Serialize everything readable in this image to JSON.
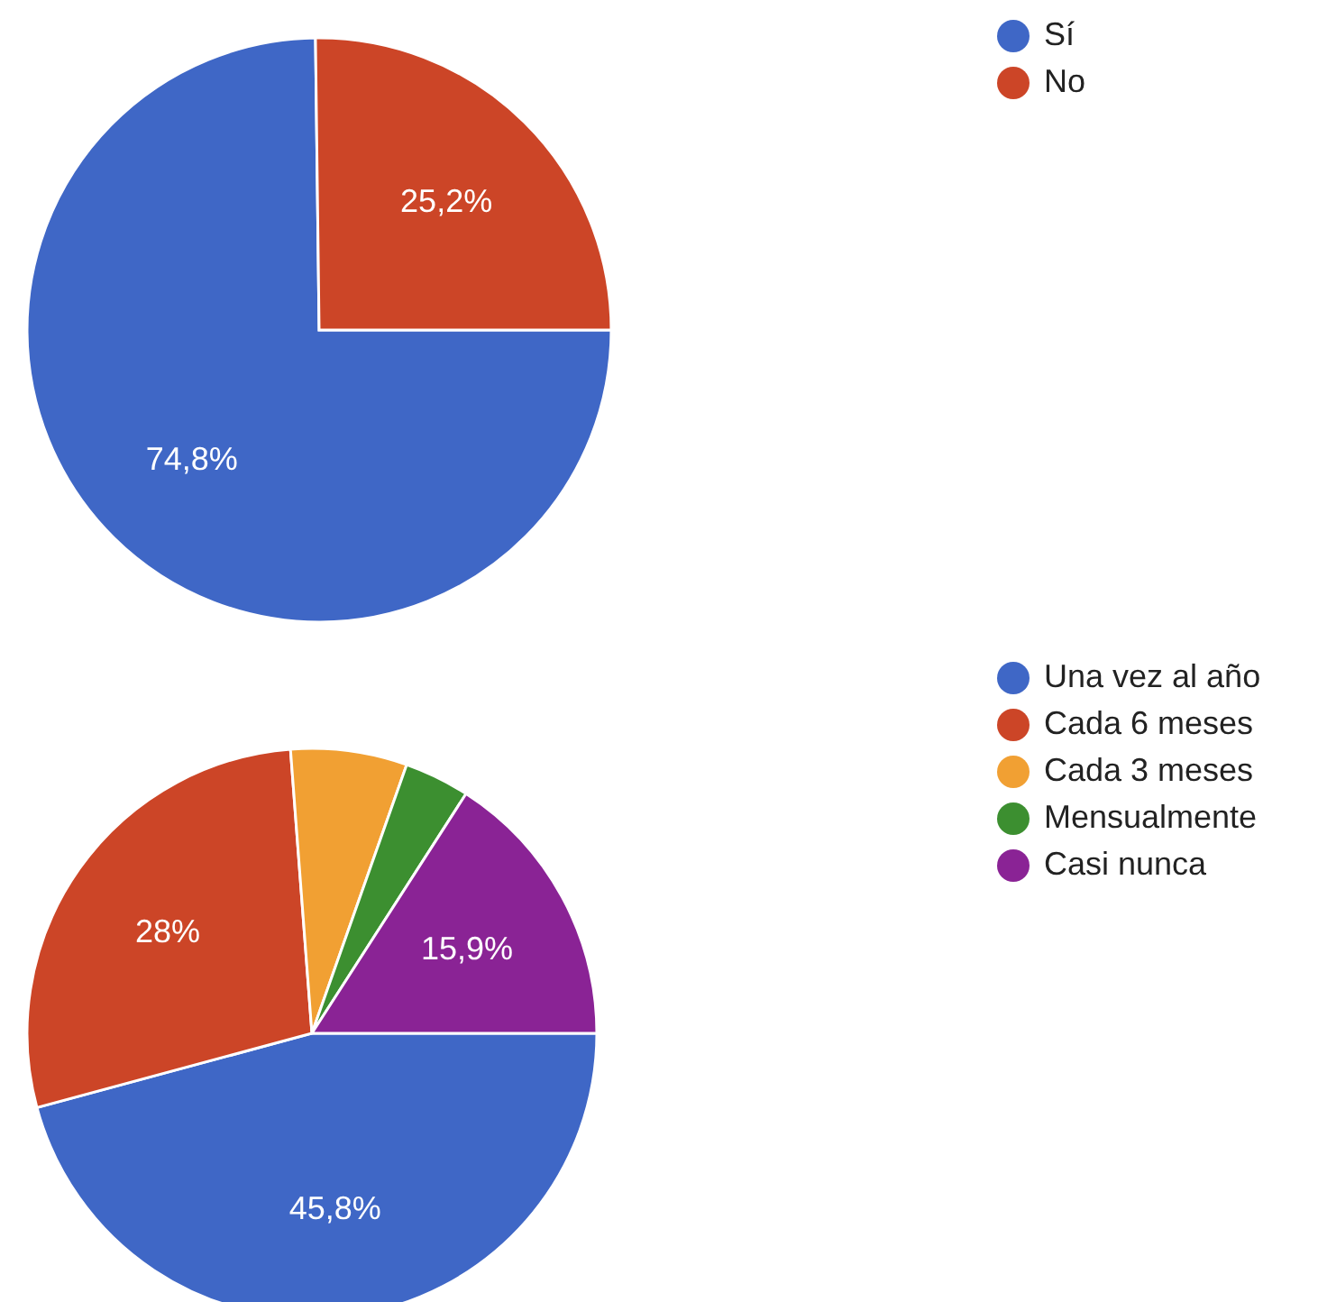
{
  "chart_data": [
    {
      "type": "pie",
      "categories": [
        "Sí",
        "No"
      ],
      "values": [
        74.8,
        25.2
      ],
      "colors": [
        "#3f67c6",
        "#cc4527"
      ],
      "value_labels": [
        "74,8%",
        "25,2%"
      ],
      "legend": "top right"
    },
    {
      "type": "pie",
      "categories": [
        "Una vez al año",
        "Cada 6 meses",
        "Cada 3 meses",
        "Mensualmente",
        "Casi nunca"
      ],
      "values": [
        45.8,
        28,
        6.6,
        3.7,
        15.9
      ],
      "colors": [
        "#3f67c6",
        "#cc4527",
        "#f1a033",
        "#3c8f30",
        "#8a2395"
      ],
      "value_labels": [
        "45,8%",
        "28%",
        null,
        null,
        "15,9%"
      ],
      "legend": "top right"
    }
  ]
}
